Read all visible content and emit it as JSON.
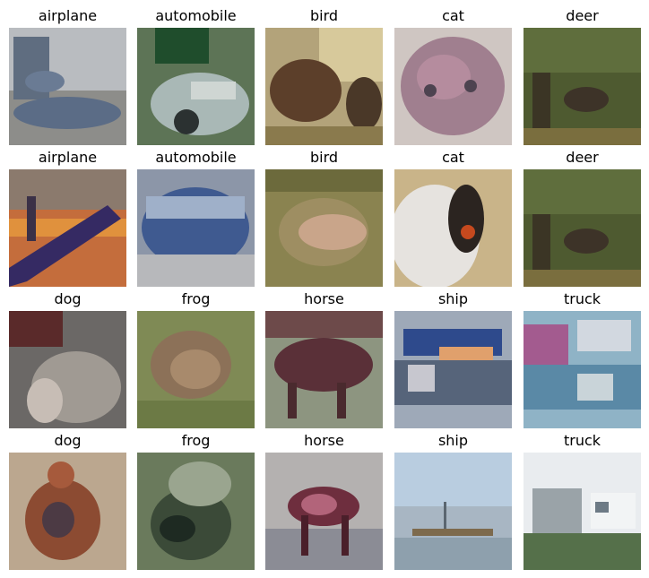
{
  "grid": {
    "rows": [
      [
        {
          "label": "airplane"
        },
        {
          "label": "automobile"
        },
        {
          "label": "bird"
        },
        {
          "label": "cat"
        },
        {
          "label": "deer"
        }
      ],
      [
        {
          "label": "airplane"
        },
        {
          "label": "automobile"
        },
        {
          "label": "bird"
        },
        {
          "label": "cat"
        },
        {
          "label": "deer"
        }
      ],
      [
        {
          "label": "dog"
        },
        {
          "label": "frog"
        },
        {
          "label": "horse"
        },
        {
          "label": "ship"
        },
        {
          "label": "truck"
        }
      ],
      [
        {
          "label": "dog"
        },
        {
          "label": "frog"
        },
        {
          "label": "horse"
        },
        {
          "label": "ship"
        },
        {
          "label": "truck"
        }
      ]
    ]
  }
}
